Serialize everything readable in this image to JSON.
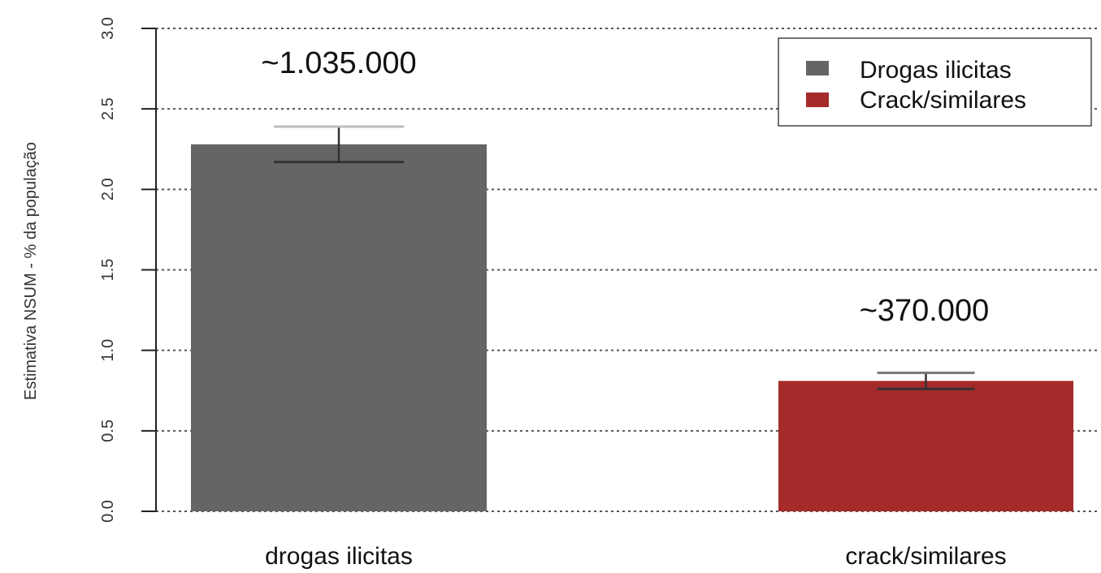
{
  "chart_data": {
    "type": "bar",
    "categories": [
      "drogas ilicitas",
      "crack/similares"
    ],
    "values": [
      2.28,
      0.81
    ],
    "error_bars": [
      {
        "low": 2.17,
        "high": 2.39
      },
      {
        "low": 0.76,
        "high": 0.86
      }
    ],
    "annotations": [
      "~1.035.000",
      "~370.000"
    ],
    "colors": [
      "#656565",
      "#a52a2a"
    ],
    "title": "",
    "xlabel": "",
    "ylabel": "Estimativa NSUM - % da população",
    "ylim": [
      0,
      3
    ],
    "yticks": [
      "0.0",
      "0.5",
      "1.0",
      "1.5",
      "2.0",
      "2.5",
      "3.0"
    ],
    "grid": "horizontal dotted",
    "legend": {
      "position": "top-right",
      "entries": [
        {
          "label": "Drogas ilicitas",
          "color": "#656565"
        },
        {
          "label": "Crack/similares",
          "color": "#a52a2a"
        }
      ]
    }
  }
}
